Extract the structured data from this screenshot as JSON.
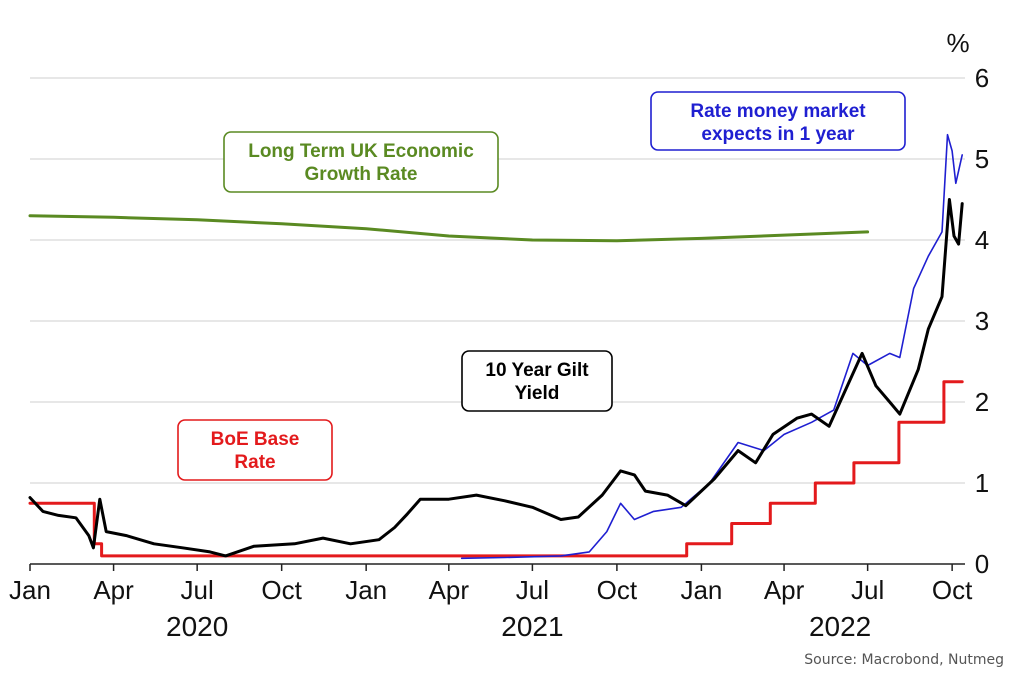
{
  "chart_data": {
    "type": "line",
    "unit_label": "%",
    "ylim": [
      0,
      6
    ],
    "yticks": [
      "0",
      "1",
      "2",
      "3",
      "4",
      "5",
      "6"
    ],
    "x_ticks": [
      "Jan",
      "Apr",
      "Jul",
      "Oct",
      "Jan",
      "Apr",
      "Jul",
      "Oct",
      "Jan",
      "Apr",
      "Jul",
      "Oct"
    ],
    "years": [
      "2020",
      "2021",
      "2022"
    ],
    "grid": true,
    "series": [
      {
        "name": "BoE Base Rate",
        "label_lines": [
          "BoE Base",
          "Rate"
        ],
        "color": "#e31a1c",
        "step": true,
        "points": [
          [
            "2020-01-01",
            0.75
          ],
          [
            "2020-03-11",
            0.25
          ],
          [
            "2020-03-19",
            0.1
          ],
          [
            "2021-12-16",
            0.25
          ],
          [
            "2022-02-03",
            0.5
          ],
          [
            "2022-03-17",
            0.75
          ],
          [
            "2022-05-05",
            1.0
          ],
          [
            "2022-06-16",
            1.25
          ],
          [
            "2022-08-04",
            1.75
          ],
          [
            "2022-09-22",
            2.25
          ],
          [
            "2022-10-12",
            2.25
          ]
        ]
      },
      {
        "name": "Long Term UK Economic Growth Rate",
        "label_lines": [
          "Long Term UK Economic",
          "Growth Rate"
        ],
        "color": "#5a8a22",
        "points": [
          [
            "2020-01-01",
            4.3
          ],
          [
            "2020-04-01",
            4.28
          ],
          [
            "2020-07-01",
            4.25
          ],
          [
            "2020-10-01",
            4.2
          ],
          [
            "2021-01-01",
            4.14
          ],
          [
            "2021-04-01",
            4.05
          ],
          [
            "2021-07-01",
            4.0
          ],
          [
            "2021-10-01",
            3.99
          ],
          [
            "2022-01-01",
            4.02
          ],
          [
            "2022-04-01",
            4.06
          ],
          [
            "2022-07-01",
            4.1
          ]
        ]
      },
      {
        "name": "10 Year Gilt Yield",
        "label_lines": [
          "10 Year Gilt",
          "Yield"
        ],
        "color": "#000000",
        "points": [
          [
            "2020-01-01",
            0.82
          ],
          [
            "2020-01-15",
            0.65
          ],
          [
            "2020-02-01",
            0.6
          ],
          [
            "2020-02-20",
            0.57
          ],
          [
            "2020-03-05",
            0.35
          ],
          [
            "2020-03-10",
            0.2
          ],
          [
            "2020-03-17",
            0.8
          ],
          [
            "2020-03-24",
            0.4
          ],
          [
            "2020-04-15",
            0.35
          ],
          [
            "2020-05-15",
            0.25
          ],
          [
            "2020-06-15",
            0.2
          ],
          [
            "2020-07-15",
            0.15
          ],
          [
            "2020-08-01",
            0.1
          ],
          [
            "2020-09-01",
            0.22
          ],
          [
            "2020-10-15",
            0.25
          ],
          [
            "2020-11-15",
            0.32
          ],
          [
            "2020-12-15",
            0.25
          ],
          [
            "2021-01-15",
            0.3
          ],
          [
            "2021-02-01",
            0.45
          ],
          [
            "2021-02-15",
            0.62
          ],
          [
            "2021-03-01",
            0.8
          ],
          [
            "2021-04-01",
            0.8
          ],
          [
            "2021-05-01",
            0.85
          ],
          [
            "2021-06-01",
            0.78
          ],
          [
            "2021-07-01",
            0.7
          ],
          [
            "2021-08-01",
            0.55
          ],
          [
            "2021-08-20",
            0.58
          ],
          [
            "2021-09-15",
            0.85
          ],
          [
            "2021-10-05",
            1.15
          ],
          [
            "2021-10-20",
            1.1
          ],
          [
            "2021-11-01",
            0.9
          ],
          [
            "2021-11-25",
            0.85
          ],
          [
            "2021-12-15",
            0.72
          ],
          [
            "2022-01-15",
            1.05
          ],
          [
            "2022-02-10",
            1.4
          ],
          [
            "2022-03-01",
            1.25
          ],
          [
            "2022-03-20",
            1.6
          ],
          [
            "2022-04-15",
            1.8
          ],
          [
            "2022-05-01",
            1.85
          ],
          [
            "2022-05-20",
            1.7
          ],
          [
            "2022-06-15",
            2.35
          ],
          [
            "2022-06-25",
            2.6
          ],
          [
            "2022-07-10",
            2.2
          ],
          [
            "2022-07-25",
            2.0
          ],
          [
            "2022-08-05",
            1.85
          ],
          [
            "2022-08-25",
            2.4
          ],
          [
            "2022-09-05",
            2.9
          ],
          [
            "2022-09-20",
            3.3
          ],
          [
            "2022-09-28",
            4.5
          ],
          [
            "2022-10-03",
            4.05
          ],
          [
            "2022-10-08",
            3.95
          ],
          [
            "2022-10-12",
            4.45
          ]
        ]
      },
      {
        "name": "Rate money market expects in 1 year",
        "label_lines": [
          "Rate money market",
          "expects in 1 year"
        ],
        "color": "#1f1fd1",
        "points": [
          [
            "2021-04-15",
            0.07
          ],
          [
            "2021-06-01",
            0.08
          ],
          [
            "2021-08-01",
            0.1
          ],
          [
            "2021-09-01",
            0.15
          ],
          [
            "2021-09-20",
            0.4
          ],
          [
            "2021-10-05",
            0.75
          ],
          [
            "2021-10-20",
            0.55
          ],
          [
            "2021-11-10",
            0.65
          ],
          [
            "2021-12-10",
            0.7
          ],
          [
            "2022-01-10",
            1.0
          ],
          [
            "2022-02-10",
            1.5
          ],
          [
            "2022-03-10",
            1.4
          ],
          [
            "2022-04-01",
            1.6
          ],
          [
            "2022-05-01",
            1.75
          ],
          [
            "2022-05-25",
            1.9
          ],
          [
            "2022-06-15",
            2.6
          ],
          [
            "2022-07-01",
            2.45
          ],
          [
            "2022-07-25",
            2.6
          ],
          [
            "2022-08-05",
            2.55
          ],
          [
            "2022-08-20",
            3.4
          ],
          [
            "2022-09-05",
            3.8
          ],
          [
            "2022-09-20",
            4.1
          ],
          [
            "2022-09-26",
            5.3
          ],
          [
            "2022-10-01",
            5.1
          ],
          [
            "2022-10-05",
            4.7
          ],
          [
            "2022-10-12",
            5.05
          ]
        ]
      }
    ]
  },
  "source": "Source: Macrobond, Nutmeg"
}
